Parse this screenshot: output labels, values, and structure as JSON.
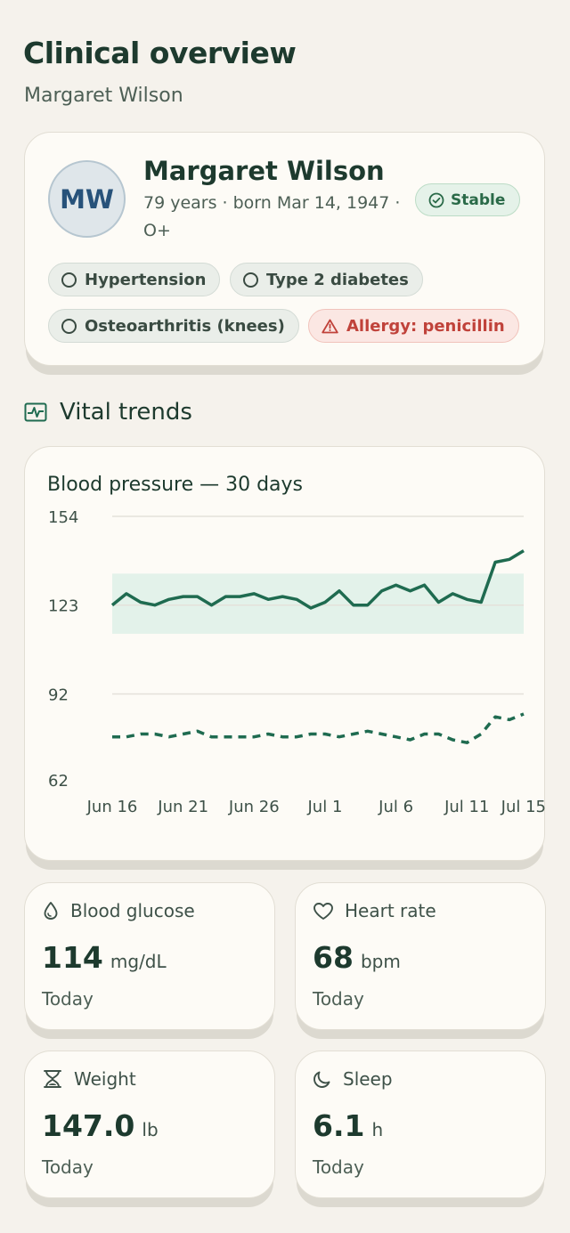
{
  "header": {
    "title": "Clinical overview",
    "subtitle": "Margaret Wilson"
  },
  "patient": {
    "initials": "MW",
    "name": "Margaret Wilson",
    "meta": "79 years · born Mar 14, 1947 · O+",
    "status": "Stable",
    "status_icon": "check-circle-icon",
    "conditions": [
      "Hypertension",
      "Type 2 diabetes",
      "Osteoarthritis (knees)"
    ],
    "allergy": "Allergy: penicillin",
    "allergy_icon": "warning-triangle-icon"
  },
  "vitals": {
    "section_title": "Vital trends",
    "section_icon": "activity-chart-icon"
  },
  "chart_data": {
    "type": "line",
    "title": "Blood pressure — 30 days",
    "y_ticks": [
      154,
      123,
      92,
      62
    ],
    "ylim": [
      62,
      154
    ],
    "x_tick_labels": [
      "Jun 16",
      "Jun 21",
      "Jun 26",
      "Jul 1",
      "Jul 6",
      "Jul 11",
      "Jul 15"
    ],
    "x_tick_index": [
      0,
      5,
      10,
      15,
      20,
      25,
      29
    ],
    "target_band": [
      113,
      134
    ],
    "grid": true,
    "colors": {
      "line": "#1f6b50",
      "band": "#e3f2ea",
      "grid": "#e4e1da"
    },
    "series": [
      {
        "style": "solid",
        "values": [
          123,
          127,
          124,
          123,
          125,
          126,
          126,
          123,
          126,
          126,
          127,
          125,
          126,
          125,
          122,
          124,
          128,
          123,
          123,
          128,
          130,
          128,
          130,
          124,
          127,
          125,
          124,
          138,
          139,
          142
        ]
      },
      {
        "style": "dashed",
        "values": [
          77,
          77,
          78,
          78,
          77,
          78,
          79,
          77,
          77,
          77,
          77,
          78,
          77,
          77,
          78,
          78,
          77,
          78,
          79,
          78,
          77,
          76,
          78,
          78,
          76,
          75,
          78,
          84,
          83,
          85
        ]
      }
    ]
  },
  "metrics": [
    {
      "icon": "droplet-icon",
      "label": "Blood glucose",
      "value": "114",
      "unit": "mg/dL",
      "when": "Today"
    },
    {
      "icon": "heart-icon",
      "label": "Heart rate",
      "value": "68",
      "unit": "bpm",
      "when": "Today"
    },
    {
      "icon": "scale-icon",
      "label": "Weight",
      "value": "147.0",
      "unit": "lb",
      "when": "Today"
    },
    {
      "icon": "moon-icon",
      "label": "Sleep",
      "value": "6.1",
      "unit": "h",
      "when": "Today"
    }
  ]
}
